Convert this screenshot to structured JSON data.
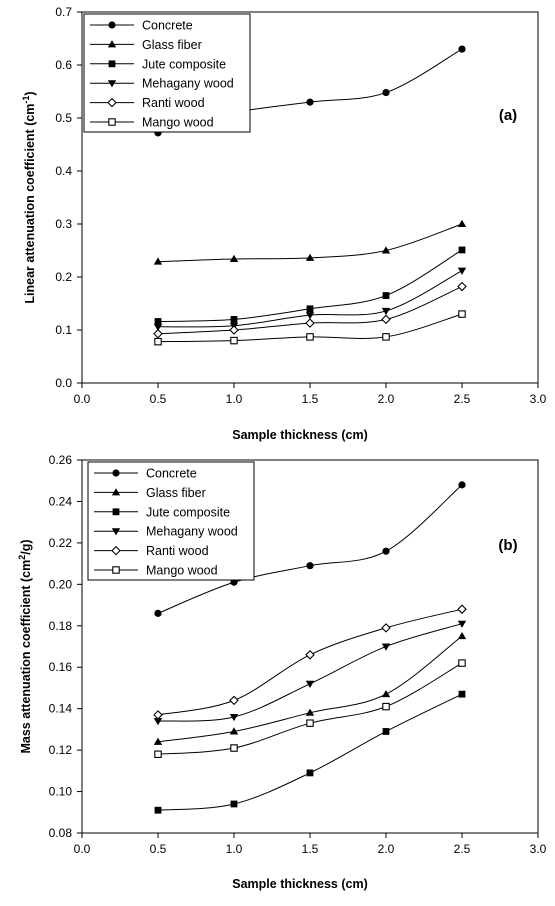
{
  "chart_data": [
    {
      "type": "line",
      "panel_label": "(a)",
      "xlabel": "Sample thickness (cm)",
      "ylabel_main": "Linear attenuation coefficient (cm",
      "ylabel_sup": "-1",
      "ylabel_tail": ")",
      "xlim": [
        0.0,
        3.0
      ],
      "ylim": [
        0.0,
        0.7
      ],
      "xticks": [
        "0.0",
        "0.5",
        "1.0",
        "1.5",
        "2.0",
        "2.5",
        "3.0"
      ],
      "yticks": [
        "0.0",
        "0.1",
        "0.2",
        "0.3",
        "0.4",
        "0.5",
        "0.6",
        "0.7"
      ],
      "x": [
        0.5,
        1.0,
        1.5,
        2.0,
        2.5
      ],
      "legend_position": "top-left",
      "series": [
        {
          "name": "Concrete",
          "marker": "circle-filled",
          "values": [
            0.472,
            0.51,
            0.53,
            0.548,
            0.63
          ]
        },
        {
          "name": "Glass fiber",
          "marker": "triangle-up-filled",
          "values": [
            0.229,
            0.234,
            0.236,
            0.25,
            0.3
          ]
        },
        {
          "name": "Jute composite",
          "marker": "square-filled",
          "values": [
            0.116,
            0.12,
            0.14,
            0.165,
            0.251
          ]
        },
        {
          "name": "Mehagany wood",
          "marker": "triangle-down-filled",
          "values": [
            0.106,
            0.108,
            0.128,
            0.136,
            0.212
          ]
        },
        {
          "name": "Ranti wood",
          "marker": "diamond-open",
          "values": [
            0.093,
            0.1,
            0.113,
            0.12,
            0.182
          ]
        },
        {
          "name": "Mango wood",
          "marker": "square-open",
          "values": [
            0.078,
            0.08,
            0.087,
            0.087,
            0.13
          ]
        }
      ]
    },
    {
      "type": "line",
      "panel_label": "(b)",
      "xlabel": "Sample thickness (cm)",
      "ylabel_main": "Mass attenuation coefficient (cm",
      "ylabel_sup": "2",
      "ylabel_tail": "/g)",
      "xlim": [
        0.0,
        3.0
      ],
      "ylim": [
        0.08,
        0.26
      ],
      "xticks": [
        "0.0",
        "0.5",
        "1.0",
        "1.5",
        "2.0",
        "2.5",
        "3.0"
      ],
      "yticks": [
        "0.08",
        "0.10",
        "0.12",
        "0.14",
        "0.16",
        "0.18",
        "0.20",
        "0.22",
        "0.24",
        "0.26"
      ],
      "x": [
        0.5,
        1.0,
        1.5,
        2.0,
        2.5
      ],
      "legend_position": "top-left",
      "series": [
        {
          "name": "Concrete",
          "marker": "circle-filled",
          "values": [
            0.186,
            0.201,
            0.209,
            0.216,
            0.248
          ]
        },
        {
          "name": "Glass fiber",
          "marker": "triangle-up-filled",
          "values": [
            0.124,
            0.129,
            0.138,
            0.147,
            0.175
          ]
        },
        {
          "name": "Jute composite",
          "marker": "square-filled",
          "values": [
            0.091,
            0.094,
            0.109,
            0.129,
            0.147
          ]
        },
        {
          "name": "Mehagany wood",
          "marker": "triangle-down-filled",
          "values": [
            0.134,
            0.136,
            0.152,
            0.17,
            0.181
          ]
        },
        {
          "name": "Ranti wood",
          "marker": "diamond-open",
          "values": [
            0.137,
            0.144,
            0.166,
            0.179,
            0.188
          ]
        },
        {
          "name": "Mango wood",
          "marker": "square-open",
          "values": [
            0.118,
            0.121,
            0.133,
            0.141,
            0.162
          ]
        }
      ]
    }
  ]
}
